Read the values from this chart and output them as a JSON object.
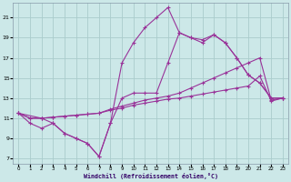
{
  "background_color": "#cce8e8",
  "grid_color": "#aacccc",
  "line_color": "#993399",
  "xlabel": "Windchill (Refroidissement éolien,°C)",
  "xlim": [
    -0.5,
    23.5
  ],
  "ylim": [
    6.5,
    22.5
  ],
  "yticks": [
    7,
    9,
    11,
    13,
    15,
    17,
    19,
    21
  ],
  "xticks": [
    0,
    1,
    2,
    3,
    4,
    5,
    6,
    7,
    8,
    9,
    10,
    11,
    12,
    13,
    14,
    15,
    16,
    17,
    18,
    19,
    20,
    21,
    22,
    23
  ],
  "line_jagged1_x": [
    0,
    1,
    2,
    3,
    4,
    5,
    6,
    7,
    8,
    9,
    10,
    11,
    12,
    13,
    14,
    15,
    16,
    17,
    18,
    19,
    20,
    21,
    22,
    23
  ],
  "line_jagged1_y": [
    11.5,
    10.5,
    10.0,
    10.5,
    9.5,
    9.0,
    8.5,
    7.2,
    10.5,
    16.5,
    18.5,
    20.0,
    21.0,
    22.0,
    19.5,
    19.0,
    18.8,
    19.3,
    18.5,
    17.0,
    15.3,
    14.5,
    13.0,
    13.0
  ],
  "line_jagged2_x": [
    0,
    2,
    3,
    4,
    5,
    6,
    7,
    8,
    9,
    10,
    11,
    12,
    13,
    14,
    15,
    16,
    17,
    18,
    19,
    20,
    21,
    22,
    23
  ],
  "line_jagged2_y": [
    11.5,
    11.0,
    10.5,
    9.5,
    9.0,
    8.5,
    7.2,
    10.5,
    13.0,
    13.5,
    13.5,
    13.5,
    16.5,
    19.5,
    19.0,
    18.5,
    19.3,
    18.5,
    17.0,
    15.3,
    14.5,
    13.0,
    13.0
  ],
  "line_smooth1_x": [
    0,
    1,
    2,
    3,
    4,
    5,
    6,
    7,
    8,
    9,
    10,
    11,
    12,
    13,
    14,
    15,
    16,
    17,
    18,
    19,
    20,
    21,
    22,
    23
  ],
  "line_smooth1_y": [
    11.5,
    11.0,
    11.0,
    11.1,
    11.2,
    11.3,
    11.4,
    11.5,
    11.8,
    12.0,
    12.3,
    12.5,
    12.7,
    12.9,
    13.0,
    13.2,
    13.4,
    13.6,
    13.8,
    14.0,
    14.2,
    15.2,
    12.7,
    13.0
  ],
  "line_smooth2_x": [
    0,
    1,
    2,
    3,
    4,
    5,
    6,
    7,
    8,
    9,
    10,
    11,
    12,
    13,
    14,
    15,
    16,
    17,
    18,
    19,
    20,
    21,
    22,
    23
  ],
  "line_smooth2_y": [
    11.5,
    11.0,
    11.0,
    11.1,
    11.2,
    11.3,
    11.4,
    11.5,
    11.9,
    12.2,
    12.5,
    12.8,
    13.0,
    13.2,
    13.5,
    14.0,
    14.5,
    15.0,
    15.5,
    16.0,
    16.5,
    17.0,
    12.8,
    13.0
  ]
}
